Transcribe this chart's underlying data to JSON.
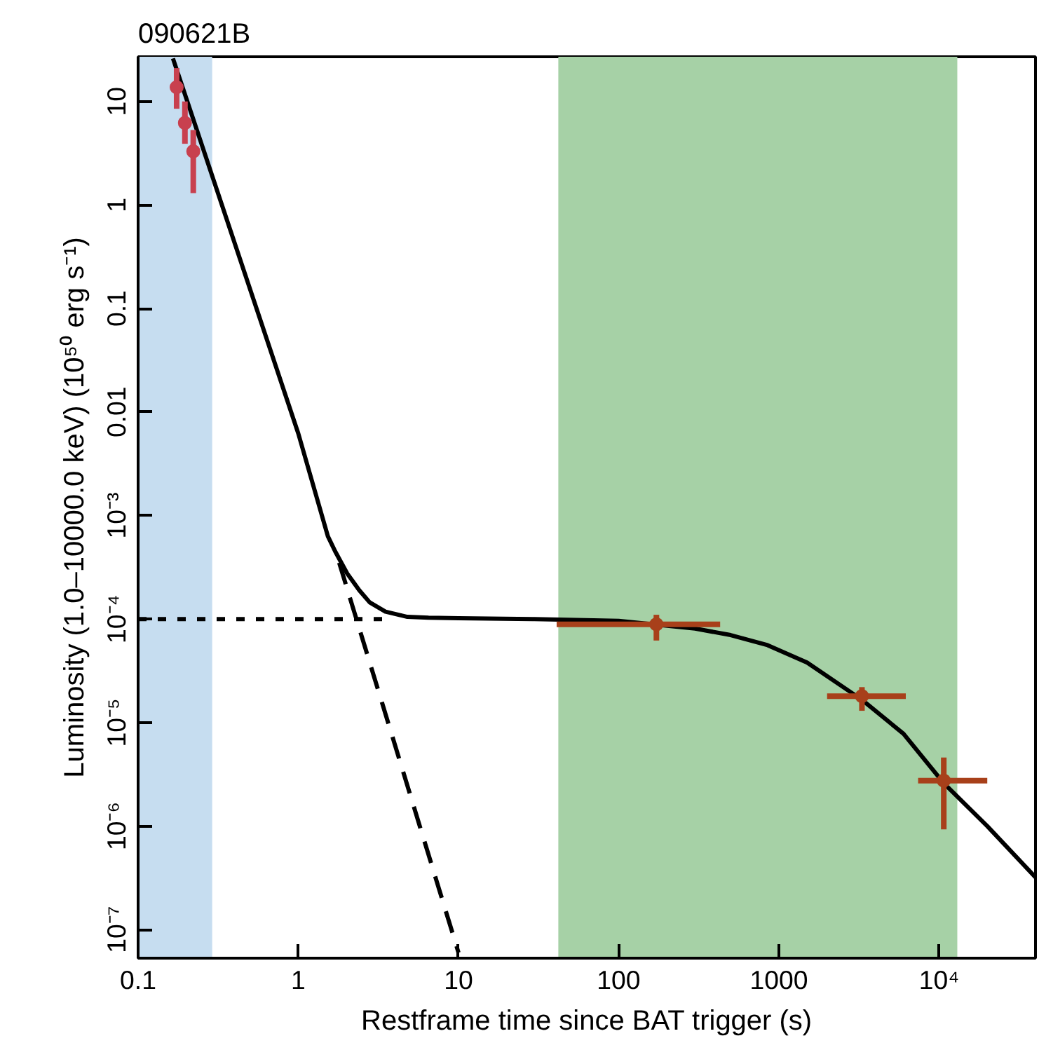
{
  "chart_data": {
    "type": "line",
    "title": "090621B",
    "xlabel": "Restframe time since BAT trigger (s)",
    "ylabel": "Luminosity (1.0–10000.0 keV) (10⁵⁰ erg s⁻¹)",
    "log": "xy",
    "grid": false,
    "xlim": [
      0.1,
      40000
    ],
    "ylim": [
      5.3e-08,
      27
    ],
    "xticks": [
      0.1,
      1,
      10,
      100,
      1000,
      {
        "value": 10000,
        "label": "10⁴"
      }
    ],
    "yticks": [
      {
        "value": 1e-07,
        "label": "10⁻⁷"
      },
      {
        "value": 1e-06,
        "label": "10⁻⁶"
      },
      {
        "value": 1e-05,
        "label": "10⁻⁵"
      },
      {
        "value": 0.0001,
        "label": "10⁻⁴"
      },
      {
        "value": 0.001,
        "label": "10⁻³"
      },
      0.01,
      0.1,
      1,
      10
    ],
    "bands": [
      {
        "axis": "x",
        "from": 0.1,
        "to": 0.29,
        "color": "#c6ddf0"
      },
      {
        "axis": "x",
        "from": 42,
        "to": 13000,
        "color": "#a6d1a6"
      }
    ],
    "series": [
      {
        "type": "line",
        "color": "#000000",
        "line_style": "dotted",
        "x": [
          0.1,
          3.4
        ],
        "values": [
          0.0001,
          0.0001
        ]
      },
      {
        "type": "line",
        "color": "#000000",
        "line_style": "dashed",
        "x": [
          1.8,
          10
        ],
        "values": [
          0.00035,
          6e-08
        ]
      },
      {
        "color": "#000000",
        "line_style": "solid",
        "x": [
          0.165,
          1,
          1.53,
          1.7,
          2.02,
          2.4,
          2.79,
          3.5,
          4.8,
          6.5,
          10,
          29,
          100,
          300,
          500,
          850,
          1500,
          3300,
          6000,
          10700,
          20000,
          40000
        ],
        "values": [
          26,
          0.0062,
          0.00063,
          0.00045,
          0.000275,
          0.00019,
          0.000145,
          0.000118,
          0.000105,
          0.000103,
          0.000102,
          0.0001,
          9.6e-05,
          8.1e-05,
          7e-05,
          5.6e-05,
          3.8e-05,
          1.66e-05,
          7.8e-06,
          2.6e-06,
          1e-06,
          3.2e-07
        ]
      },
      {
        "type": "scatter",
        "marker": "circle",
        "color": "#a8401a",
        "x": [
          172,
          3300,
          10700
        ],
        "values": [
          8.9e-05,
          1.8e-05,
          2.75e-06
        ],
        "errors": [
          [
            6.2e-05,
            0.00011
          ],
          [
            1.3e-05,
            2.2e-05
          ],
          [
            9.3e-07,
            4.6e-06
          ]
        ],
        "xerrors": [
          [
            41,
            430
          ],
          [
            2000,
            6200
          ],
          [
            7400,
            20000
          ]
        ]
      },
      {
        "type": "scatter",
        "marker": "circle",
        "color": "#c8404f",
        "x": [
          0.174,
          0.196,
          0.221
        ],
        "values": [
          13.7,
          6.2,
          3.3
        ],
        "errors": [
          [
            8.5,
            21
          ],
          [
            3.9,
            10
          ],
          [
            1.3,
            5.3
          ]
        ]
      }
    ]
  }
}
